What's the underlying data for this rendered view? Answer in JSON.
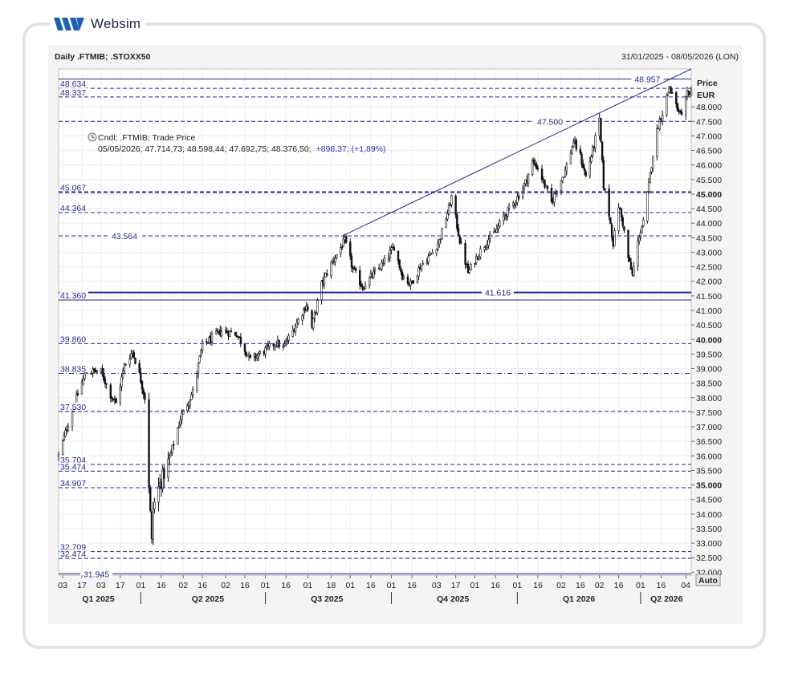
{
  "brand": {
    "name": "Websim"
  },
  "chart_data": {
    "type": "candlestick",
    "title": "Daily .FTMIB; .STOXX50",
    "date_range": "31/01/2025 - 08/05/2026 (LON)",
    "y_axis": {
      "title": "Price",
      "unit": "EUR",
      "ylim": [
        31.9,
        49.3
      ],
      "ticks": [
        "32.000",
        "32.500",
        "33.000",
        "33.500",
        "34.000",
        "34.500",
        "35.000",
        "35.500",
        "36.000",
        "36.500",
        "37.000",
        "37.500",
        "38.000",
        "38.500",
        "39.000",
        "39.500",
        "40.000",
        "40.500",
        "41.000",
        "41.500",
        "42.000",
        "42.500",
        "43.000",
        "43.500",
        "44.000",
        "44.500",
        "45.000",
        "45.500",
        "46.000",
        "46.500",
        "47.000",
        "47.500",
        "48.000"
      ],
      "bold_ticks": [
        "35.000",
        "40.000",
        "45.000"
      ],
      "auto_label": "Auto"
    },
    "x_axis": {
      "date_ticks": [
        {
          "label": "03",
          "date": "2025-02-03"
        },
        {
          "label": "17",
          "date": "2025-02-17"
        },
        {
          "label": "03",
          "date": "2025-03-03"
        },
        {
          "label": "17",
          "date": "2025-03-17"
        },
        {
          "label": "01",
          "date": "2025-04-01"
        },
        {
          "label": "16",
          "date": "2025-04-16"
        },
        {
          "label": "02",
          "date": "2025-05-02"
        },
        {
          "label": "16",
          "date": "2025-05-16"
        },
        {
          "label": "02",
          "date": "2025-06-02"
        },
        {
          "label": "16",
          "date": "2025-06-16"
        },
        {
          "label": "01",
          "date": "2025-07-01"
        },
        {
          "label": "16",
          "date": "2025-07-16"
        },
        {
          "label": "01",
          "date": "2025-08-01"
        },
        {
          "label": "18",
          "date": "2025-08-18"
        },
        {
          "label": "01",
          "date": "2025-09-01"
        },
        {
          "label": "16",
          "date": "2025-09-16"
        },
        {
          "label": "01",
          "date": "2025-10-01"
        },
        {
          "label": "16",
          "date": "2025-10-16"
        },
        {
          "label": "03",
          "date": "2025-11-03"
        },
        {
          "label": "17",
          "date": "2025-11-17"
        },
        {
          "label": "01",
          "date": "2025-12-01"
        },
        {
          "label": "16",
          "date": "2025-12-16"
        },
        {
          "label": "01",
          "date": "2026-01-01"
        },
        {
          "label": "16",
          "date": "2026-01-16"
        },
        {
          "label": "02",
          "date": "2026-02-02"
        },
        {
          "label": "16",
          "date": "2026-02-16"
        },
        {
          "label": "02",
          "date": "2026-03-02"
        },
        {
          "label": "16",
          "date": "2026-03-16"
        },
        {
          "label": "01",
          "date": "2026-04-01"
        },
        {
          "label": "16",
          "date": "2026-04-16"
        },
        {
          "label": "04",
          "date": "2026-05-04"
        }
      ],
      "quarters": [
        {
          "label": "Q1 2025",
          "date": "2025-03-01"
        },
        {
          "label": "Q2 2025",
          "date": "2025-05-20"
        },
        {
          "label": "Q3 2025",
          "date": "2025-08-15"
        },
        {
          "label": "Q4 2025",
          "date": "2025-11-15"
        },
        {
          "label": "Q1 2026",
          "date": "2026-02-15"
        },
        {
          "label": "Q2 2026",
          "date": "2026-04-20"
        }
      ],
      "quarter_separators": [
        "2025-04-01",
        "2025-07-01",
        "2025-10-01",
        "2026-01-01",
        "2026-04-01"
      ]
    },
    "legend": {
      "series": "Cndl; .FTMIB; Trade Price",
      "ohlc_line": "05/05/2026; 47.714,73; 48.598,44; 47.692,75; 48.376,50;",
      "change": "+898,37; (+1,89%)"
    },
    "horizontal_levels": [
      {
        "label": "48.634",
        "value": 48.634,
        "side": "left",
        "style": "dashed"
      },
      {
        "label": "48.337",
        "value": 48.337,
        "side": "left",
        "style": "dashed"
      },
      {
        "label": "47.500",
        "value": 47.5,
        "side": "mid",
        "style": "dashed"
      },
      {
        "label": "45.067",
        "value": 45.067,
        "side": "left",
        "style": "dashed-bold"
      },
      {
        "label": "44.364",
        "value": 44.364,
        "side": "left",
        "style": "dashed"
      },
      {
        "label": "43.564",
        "value": 43.564,
        "side": "mid",
        "style": "dashed"
      },
      {
        "label": "41.616",
        "value": 41.616,
        "side": "mid",
        "style": "solid-bold"
      },
      {
        "label": "41.360",
        "value": 41.36,
        "side": "left",
        "style": "solid"
      },
      {
        "label": "39.860",
        "value": 39.86,
        "side": "left",
        "style": "dashed"
      },
      {
        "label": "38.835",
        "value": 38.835,
        "side": "left",
        "style": "dashdot"
      },
      {
        "label": "37.530",
        "value": 37.53,
        "side": "left",
        "style": "dashed"
      },
      {
        "label": "35.704",
        "value": 35.704,
        "side": "left",
        "style": "dashed"
      },
      {
        "label": "35.474",
        "value": 35.474,
        "side": "left",
        "style": "dashed"
      },
      {
        "label": "34.907",
        "value": 34.907,
        "side": "left",
        "style": "dashed"
      },
      {
        "label": "32.709",
        "value": 32.709,
        "side": "left",
        "style": "dashed"
      },
      {
        "label": "32.474",
        "value": 32.474,
        "side": "left",
        "style": "dashed"
      },
      {
        "label": "31.945",
        "value": 31.945,
        "side": "mid",
        "style": "solid"
      }
    ],
    "top_line": {
      "label": "48.957",
      "value": 48.957
    },
    "trendline": {
      "start": {
        "date": "2025-08-28",
        "value": 43.6
      },
      "end": {
        "date": "2026-05-08",
        "value": 49.3
      }
    },
    "anchors": [
      {
        "date": "2025-01-31",
        "value": 36.0
      },
      {
        "date": "2025-02-10",
        "value": 37.6
      },
      {
        "date": "2025-02-20",
        "value": 38.9
      },
      {
        "date": "2025-03-03",
        "value": 38.9
      },
      {
        "date": "2025-03-10",
        "value": 38.1
      },
      {
        "date": "2025-03-14",
        "value": 37.8
      },
      {
        "date": "2025-03-20",
        "value": 39.1
      },
      {
        "date": "2025-03-26",
        "value": 39.6
      },
      {
        "date": "2025-03-31",
        "value": 38.8
      },
      {
        "date": "2025-04-04",
        "value": 38.0
      },
      {
        "date": "2025-04-07",
        "value": 35.0
      },
      {
        "date": "2025-04-09",
        "value": 33.0
      },
      {
        "date": "2025-04-10",
        "value": 34.2
      },
      {
        "date": "2025-04-14",
        "value": 34.9
      },
      {
        "date": "2025-04-22",
        "value": 35.9
      },
      {
        "date": "2025-04-30",
        "value": 37.3
      },
      {
        "date": "2025-05-09",
        "value": 38.2
      },
      {
        "date": "2025-05-16",
        "value": 39.8
      },
      {
        "date": "2025-05-30",
        "value": 40.3
      },
      {
        "date": "2025-06-10",
        "value": 40.2
      },
      {
        "date": "2025-06-20",
        "value": 39.3
      },
      {
        "date": "2025-06-30",
        "value": 39.6
      },
      {
        "date": "2025-07-09",
        "value": 39.9
      },
      {
        "date": "2025-07-14",
        "value": 39.7
      },
      {
        "date": "2025-07-22",
        "value": 40.4
      },
      {
        "date": "2025-07-31",
        "value": 41.2
      },
      {
        "date": "2025-08-04",
        "value": 40.4
      },
      {
        "date": "2025-08-11",
        "value": 41.9
      },
      {
        "date": "2025-08-18",
        "value": 42.6
      },
      {
        "date": "2025-08-28",
        "value": 43.4
      },
      {
        "date": "2025-09-03",
        "value": 42.4
      },
      {
        "date": "2025-09-10",
        "value": 41.8
      },
      {
        "date": "2025-09-17",
        "value": 42.2
      },
      {
        "date": "2025-09-25",
        "value": 42.6
      },
      {
        "date": "2025-10-03",
        "value": 43.2
      },
      {
        "date": "2025-10-09",
        "value": 42.2
      },
      {
        "date": "2025-10-15",
        "value": 41.9
      },
      {
        "date": "2025-10-22",
        "value": 42.5
      },
      {
        "date": "2025-10-31",
        "value": 43.0
      },
      {
        "date": "2025-11-05",
        "value": 43.4
      },
      {
        "date": "2025-11-12",
        "value": 44.5
      },
      {
        "date": "2025-11-14",
        "value": 44.9
      },
      {
        "date": "2025-11-20",
        "value": 43.4
      },
      {
        "date": "2025-11-26",
        "value": 42.3
      },
      {
        "date": "2025-12-03",
        "value": 42.9
      },
      {
        "date": "2025-12-10",
        "value": 43.4
      },
      {
        "date": "2025-12-16",
        "value": 43.7
      },
      {
        "date": "2025-12-23",
        "value": 44.3
      },
      {
        "date": "2025-12-31",
        "value": 44.8
      },
      {
        "date": "2026-01-07",
        "value": 45.4
      },
      {
        "date": "2026-01-12",
        "value": 46.1
      },
      {
        "date": "2026-01-16",
        "value": 45.9
      },
      {
        "date": "2026-01-21",
        "value": 45.3
      },
      {
        "date": "2026-01-26",
        "value": 44.7
      },
      {
        "date": "2026-01-30",
        "value": 45.2
      },
      {
        "date": "2026-02-05",
        "value": 45.8
      },
      {
        "date": "2026-02-11",
        "value": 46.8
      },
      {
        "date": "2026-02-16",
        "value": 46.3
      },
      {
        "date": "2026-02-20",
        "value": 45.6
      },
      {
        "date": "2026-02-25",
        "value": 46.5
      },
      {
        "date": "2026-03-02",
        "value": 47.5
      },
      {
        "date": "2026-03-05",
        "value": 45.3
      },
      {
        "date": "2026-03-09",
        "value": 44.3
      },
      {
        "date": "2026-03-12",
        "value": 43.3
      },
      {
        "date": "2026-03-16",
        "value": 44.6
      },
      {
        "date": "2026-03-19",
        "value": 44.0
      },
      {
        "date": "2026-03-23",
        "value": 42.8
      },
      {
        "date": "2026-03-26",
        "value": 42.2
      },
      {
        "date": "2026-03-31",
        "value": 43.6
      },
      {
        "date": "2026-04-03",
        "value": 44.0
      },
      {
        "date": "2026-04-07",
        "value": 45.3
      },
      {
        "date": "2026-04-10",
        "value": 46.4
      },
      {
        "date": "2026-04-14",
        "value": 47.4
      },
      {
        "date": "2026-04-17",
        "value": 47.8
      },
      {
        "date": "2026-04-22",
        "value": 48.7
      },
      {
        "date": "2026-04-27",
        "value": 48.0
      },
      {
        "date": "2026-05-01",
        "value": 47.6
      },
      {
        "date": "2026-05-05",
        "value": 48.4
      },
      {
        "date": "2026-05-08",
        "value": 48.6
      }
    ]
  }
}
